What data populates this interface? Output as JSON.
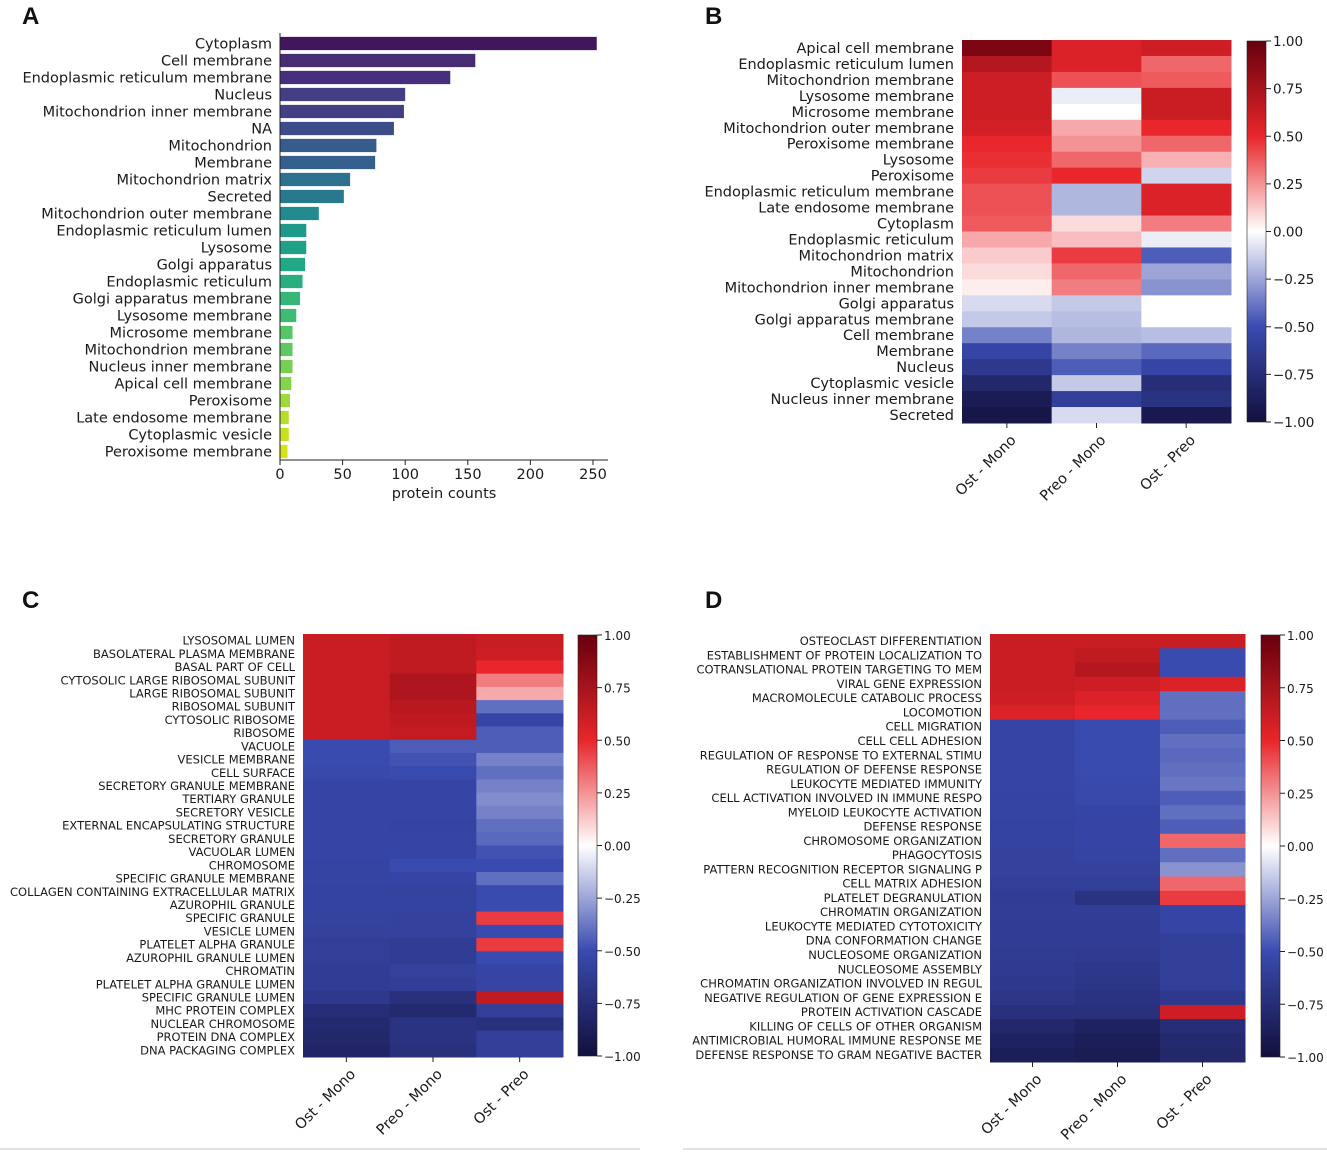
{
  "panel_labels": [
    "A",
    "B",
    "C",
    "D"
  ],
  "chart_data": [
    {
      "panel": "A",
      "type": "bar",
      "orientation": "horizontal",
      "categories": [
        "Cytoplasm",
        "Cell membrane",
        "Endoplasmic reticulum membrane",
        "Nucleus",
        "Mitochondrion inner membrane",
        "NA",
        "Mitochondrion",
        "Membrane",
        "Mitochondrion matrix",
        "Secreted",
        "Mitochondrion outer membrane",
        "Endoplasmic reticulum lumen",
        "Lysosome",
        "Golgi apparatus",
        "Endoplasmic reticulum",
        "Golgi apparatus membrane",
        "Lysosome membrane",
        "Microsome membrane",
        "Mitochondrion membrane",
        "Nucleus inner membrane",
        "Apical cell membrane",
        "Peroxisome",
        "Late endosome membrane",
        "Cytoplasmic vesicle",
        "Peroxisome membrane"
      ],
      "values": [
        253,
        156,
        136,
        100,
        99,
        91,
        77,
        76,
        56,
        51,
        31,
        21,
        21,
        20,
        18,
        16,
        13,
        10,
        10,
        10,
        9,
        8,
        7,
        7,
        6
      ],
      "colors": [
        "#41165c",
        "#472b73",
        "#472f7d",
        "#433e85",
        "#423f85",
        "#3d4d8a",
        "#365c8d",
        "#355f8d",
        "#2c728e",
        "#29798e",
        "#228b8d",
        "#1f9a8a",
        "#1fa188",
        "#22a884",
        "#29af7f",
        "#35b779",
        "#3fbc73",
        "#55c667",
        "#5ec962",
        "#75d054",
        "#85d54a",
        "#9fda3a",
        "#b5de2b",
        "#c8e020",
        "#d8e219"
      ],
      "xlabel": "protein counts",
      "xticks": [
        0,
        50,
        100,
        150,
        200,
        250
      ],
      "xlim": [
        0,
        262
      ]
    },
    {
      "panel": "B",
      "type": "heatmap",
      "rows": [
        "Apical cell membrane",
        "Endoplasmic reticulum lumen",
        "Mitochondrion membrane",
        "Lysosome membrane",
        "Microsome membrane",
        "Mitochondrion outer membrane",
        "Peroxisome membrane",
        "Lysosome",
        "Peroxisome",
        "Endoplasmic reticulum membrane",
        "Late endosome membrane",
        "Cytoplasm",
        "Endoplasmic reticulum",
        "Mitochondrion matrix",
        "Mitochondrion",
        "Mitochondrion inner membrane",
        "Golgi apparatus",
        "Golgi apparatus membrane",
        "Cell membrane",
        "Membrane",
        "Nucleus",
        "Cytoplasmic vesicle",
        "Nucleus inner membrane",
        "Secreted"
      ],
      "columns": [
        "Ost - Mono",
        "Preo - Mono",
        "Ost - Preo"
      ],
      "values": [
        [
          0.92,
          0.55,
          0.6
        ],
        [
          0.7,
          0.55,
          0.35
        ],
        [
          0.6,
          0.4,
          0.38
        ],
        [
          0.6,
          -0.05,
          0.62
        ],
        [
          0.6,
          0.0,
          0.62
        ],
        [
          0.58,
          0.2,
          0.5
        ],
        [
          0.5,
          0.25,
          0.35
        ],
        [
          0.48,
          0.35,
          0.18
        ],
        [
          0.45,
          0.5,
          -0.12
        ],
        [
          0.4,
          -0.2,
          0.55
        ],
        [
          0.4,
          -0.2,
          0.55
        ],
        [
          0.38,
          0.08,
          0.3
        ],
        [
          0.2,
          0.15,
          -0.05
        ],
        [
          0.12,
          0.45,
          -0.45
        ],
        [
          0.08,
          0.35,
          -0.25
        ],
        [
          0.04,
          0.3,
          -0.3
        ],
        [
          -0.1,
          -0.15,
          0.0
        ],
        [
          -0.15,
          -0.18,
          0.0
        ],
        [
          -0.35,
          -0.2,
          -0.18
        ],
        [
          -0.55,
          -0.35,
          -0.42
        ],
        [
          -0.65,
          -0.45,
          -0.55
        ],
        [
          -0.8,
          -0.15,
          -0.75
        ],
        [
          -0.9,
          -0.6,
          -0.7
        ],
        [
          -0.95,
          -0.1,
          -0.92
        ]
      ],
      "colorbar": {
        "min": -1.0,
        "max": 1.0,
        "ticks": [
          "1.00",
          "0.75",
          "0.50",
          "0.25",
          "0.00",
          "−0.25",
          "−0.50",
          "−0.75",
          "−1.00"
        ]
      }
    },
    {
      "panel": "C",
      "type": "heatmap",
      "rows": [
        "LYSOSOMAL LUMEN",
        "BASOLATERAL PLASMA MEMBRANE",
        "BASAL PART OF CELL",
        "CYTOSOLIC LARGE RIBOSOMAL SUBUNIT",
        "LARGE RIBOSOMAL SUBUNIT",
        "RIBOSOMAL SUBUNIT",
        "CYTOSOLIC RIBOSOME",
        "RIBOSOME",
        "VACUOLE",
        "VESICLE MEMBRANE",
        "CELL SURFACE",
        "SECRETORY GRANULE MEMBRANE",
        "TERTIARY GRANULE",
        "SECRETORY VESICLE",
        "EXTERNAL ENCAPSULATING STRUCTURE",
        "SECRETORY GRANULE",
        "VACUOLAR LUMEN",
        "CHROMOSOME",
        "SPECIFIC GRANULE MEMBRANE",
        "COLLAGEN CONTAINING EXTRACELLULAR MATRIX",
        "AZUROPHIL GRANULE",
        "SPECIFIC GRANULE",
        "VESICLE LUMEN",
        "PLATELET ALPHA GRANULE",
        "AZUROPHIL GRANULE LUMEN",
        "CHROMATIN",
        "PLATELET ALPHA GRANULE LUMEN",
        "SPECIFIC GRANULE LUMEN",
        "MHC PROTEIN COMPLEX",
        "NUCLEAR CHROMOSOME",
        "PROTEIN DNA COMPLEX",
        "DNA PACKAGING COMPLEX"
      ],
      "columns": [
        "Ost - Mono",
        "Preo - Mono",
        "Ost - Preo"
      ],
      "values": [
        [
          0.62,
          0.65,
          0.62
        ],
        [
          0.62,
          0.65,
          0.6
        ],
        [
          0.62,
          0.65,
          0.5
        ],
        [
          0.62,
          0.72,
          0.3
        ],
        [
          0.62,
          0.72,
          0.2
        ],
        [
          0.62,
          0.68,
          -0.4
        ],
        [
          0.62,
          0.66,
          -0.55
        ],
        [
          0.62,
          0.64,
          -0.45
        ],
        [
          -0.5,
          -0.45,
          -0.45
        ],
        [
          -0.5,
          -0.48,
          -0.35
        ],
        [
          -0.52,
          -0.5,
          -0.4
        ],
        [
          -0.55,
          -0.55,
          -0.35
        ],
        [
          -0.55,
          -0.55,
          -0.32
        ],
        [
          -0.55,
          -0.55,
          -0.35
        ],
        [
          -0.55,
          -0.56,
          -0.4
        ],
        [
          -0.55,
          -0.55,
          -0.42
        ],
        [
          -0.55,
          -0.55,
          -0.48
        ],
        [
          -0.56,
          -0.5,
          -0.5
        ],
        [
          -0.56,
          -0.55,
          -0.4
        ],
        [
          -0.57,
          -0.57,
          -0.5
        ],
        [
          -0.57,
          -0.57,
          -0.5
        ],
        [
          -0.57,
          -0.58,
          0.45
        ],
        [
          -0.58,
          -0.58,
          -0.5
        ],
        [
          -0.6,
          -0.62,
          0.45
        ],
        [
          -0.6,
          -0.62,
          -0.5
        ],
        [
          -0.62,
          -0.58,
          -0.55
        ],
        [
          -0.62,
          -0.6,
          -0.55
        ],
        [
          -0.65,
          -0.72,
          0.65
        ],
        [
          -0.75,
          -0.78,
          -0.6
        ],
        [
          -0.78,
          -0.7,
          -0.72
        ],
        [
          -0.8,
          -0.7,
          -0.6
        ],
        [
          -0.82,
          -0.72,
          -0.6
        ]
      ],
      "colorbar": {
        "min": -1.0,
        "max": 1.0,
        "ticks": [
          "1.00",
          "0.75",
          "0.50",
          "0.25",
          "0.00",
          "−0.25",
          "−0.50",
          "−0.75",
          "−1.00"
        ]
      }
    },
    {
      "panel": "D",
      "type": "heatmap",
      "rows": [
        "OSTEOCLAST DIFFERENTIATION",
        "ESTABLISHMENT OF PROTEIN LOCALIZATION TO",
        "COTRANSLATIONAL PROTEIN TARGETING TO MEM",
        "VIRAL GENE EXPRESSION",
        "MACROMOLECULE CATABOLIC PROCESS",
        "LOCOMOTION",
        "CELL MIGRATION",
        "CELL CELL ADHESION",
        "REGULATION OF RESPONSE TO EXTERNAL STIMU",
        "REGULATION OF DEFENSE RESPONSE",
        "LEUKOCYTE MEDIATED IMMUNITY",
        "CELL ACTIVATION INVOLVED IN IMMUNE RESPO",
        "MYELOID LEUKOCYTE ACTIVATION",
        "DEFENSE RESPONSE",
        "CHROMOSOME ORGANIZATION",
        "PHAGOCYTOSIS",
        "PATTERN RECOGNITION RECEPTOR SIGNALING P",
        "CELL MATRIX ADHESION",
        "PLATELET DEGRANULATION",
        "CHROMATIN ORGANIZATION",
        "LEUKOCYTE MEDIATED CYTOTOXICITY",
        "DNA CONFORMATION CHANGE",
        "NUCLEOSOME ORGANIZATION",
        "NUCLEOSOME ASSEMBLY",
        "CHROMATIN ORGANIZATION INVOLVED IN REGUL",
        "NEGATIVE REGULATION OF GENE EXPRESSION E",
        "PROTEIN ACTIVATION CASCADE",
        "KILLING OF CELLS OF OTHER ORGANISM",
        "ANTIMICROBIAL HUMORAL IMMUNE RESPONSE ME",
        "DEFENSE RESPONSE TO GRAM NEGATIVE BACTER"
      ],
      "columns": [
        "Ost - Mono",
        "Preo - Mono",
        "Ost - Preo"
      ],
      "values": [
        [
          0.62,
          0.62,
          0.62
        ],
        [
          0.62,
          0.65,
          -0.5
        ],
        [
          0.62,
          0.7,
          -0.5
        ],
        [
          0.62,
          0.6,
          0.55
        ],
        [
          0.6,
          0.55,
          -0.4
        ],
        [
          0.55,
          0.5,
          -0.4
        ],
        [
          -0.55,
          -0.5,
          -0.45
        ],
        [
          -0.55,
          -0.5,
          -0.4
        ],
        [
          -0.55,
          -0.5,
          -0.42
        ],
        [
          -0.55,
          -0.5,
          -0.4
        ],
        [
          -0.55,
          -0.52,
          -0.38
        ],
        [
          -0.56,
          -0.52,
          -0.45
        ],
        [
          -0.56,
          -0.55,
          -0.4
        ],
        [
          -0.57,
          -0.55,
          -0.45
        ],
        [
          -0.57,
          -0.55,
          0.35
        ],
        [
          -0.58,
          -0.56,
          -0.4
        ],
        [
          -0.58,
          -0.58,
          -0.3
        ],
        [
          -0.6,
          -0.6,
          0.35
        ],
        [
          -0.62,
          -0.7,
          0.45
        ],
        [
          -0.6,
          -0.6,
          -0.55
        ],
        [
          -0.62,
          -0.62,
          -0.55
        ],
        [
          -0.62,
          -0.62,
          -0.6
        ],
        [
          -0.63,
          -0.64,
          -0.6
        ],
        [
          -0.64,
          -0.66,
          -0.6
        ],
        [
          -0.65,
          -0.68,
          -0.6
        ],
        [
          -0.68,
          -0.7,
          -0.65
        ],
        [
          -0.72,
          -0.72,
          0.6
        ],
        [
          -0.8,
          -0.85,
          -0.75
        ],
        [
          -0.85,
          -0.88,
          -0.78
        ],
        [
          -0.88,
          -0.9,
          -0.8
        ]
      ],
      "colorbar": {
        "min": -1.0,
        "max": 1.0,
        "ticks": [
          "1.00",
          "0.75",
          "0.50",
          "0.25",
          "0.00",
          "−0.25",
          "−0.50",
          "−0.75",
          "−1.00"
        ]
      }
    }
  ]
}
